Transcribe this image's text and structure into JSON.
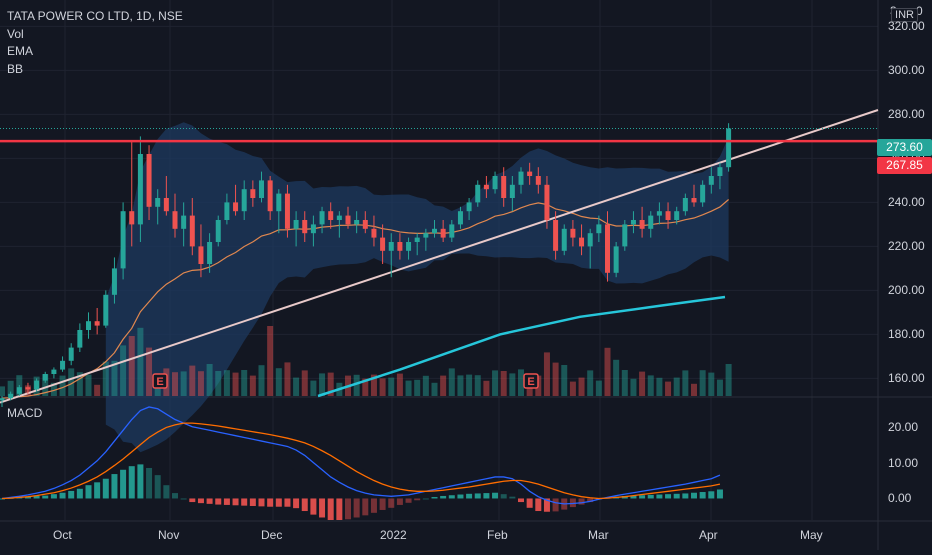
{
  "header": {
    "symbol_line": "TATA POWER CO LTD, 1D, NSE",
    "indicators": [
      "Vol",
      "EMA",
      "BB"
    ],
    "macd_label": "MACD",
    "currency": "INR"
  },
  "price_axis": {
    "ticks": [
      "320.00",
      "300.00",
      "280.00",
      "260.00",
      "240.00",
      "220.00",
      "200.00",
      "180.00",
      "160.00"
    ],
    "top_clipped": "3",
    "top_clipped_suffix": "0"
  },
  "macd_axis": {
    "ticks": [
      "20.00",
      "10.00",
      "0.00"
    ]
  },
  "time_axis": {
    "labels": [
      "Oct",
      "Nov",
      "Dec",
      "2022",
      "Feb",
      "Mar",
      "Apr",
      "May"
    ]
  },
  "price_tags": {
    "last": {
      "text": "273.60",
      "color": "#26a69a"
    },
    "resistance": {
      "text": "267.85",
      "color": "#f23645"
    }
  },
  "colors": {
    "up": "#26a69a",
    "down": "#ef5350",
    "bb_fill": "#1e3a5f",
    "ema_line": "#e0874f",
    "ma200": "#26c6da",
    "trendline": "#e8c9c9",
    "resistance": "#f23645",
    "macd": "#2962ff",
    "signal": "#ff6d00",
    "hist_up": "#26a69a",
    "hist_down": "#ef5350"
  },
  "chart_data": [
    {
      "type": "candlestick",
      "title": "TATA POWER CO LTD, 1D, NSE",
      "ylim": [
        152,
        332
      ],
      "x": [
        "Oct",
        "Nov",
        "Dec",
        "2022",
        "Feb",
        "Mar",
        "Apr",
        "May"
      ],
      "last_price": 273.6,
      "resistance_level": 267.85,
      "candles": [
        [
          150,
          152,
          147,
          151
        ],
        [
          151,
          154,
          150,
          153
        ],
        [
          153,
          157,
          152,
          156
        ],
        [
          156,
          158,
          153,
          155
        ],
        [
          155,
          160,
          154,
          159
        ],
        [
          159,
          163,
          158,
          162
        ],
        [
          162,
          165,
          160,
          164
        ],
        [
          164,
          170,
          163,
          168
        ],
        [
          168,
          176,
          166,
          174
        ],
        [
          174,
          185,
          172,
          182
        ],
        [
          182,
          190,
          178,
          186
        ],
        [
          186,
          192,
          180,
          184
        ],
        [
          184,
          200,
          183,
          198
        ],
        [
          198,
          215,
          194,
          210
        ],
        [
          210,
          240,
          205,
          236
        ],
        [
          236,
          268,
          220,
          230
        ],
        [
          230,
          270,
          222,
          262
        ],
        [
          262,
          266,
          232,
          238
        ],
        [
          238,
          246,
          230,
          242
        ],
        [
          242,
          252,
          234,
          236
        ],
        [
          236,
          244,
          224,
          228
        ],
        [
          228,
          240,
          220,
          234
        ],
        [
          234,
          242,
          216,
          220
        ],
        [
          220,
          230,
          206,
          212
        ],
        [
          212,
          226,
          208,
          222
        ],
        [
          222,
          234,
          220,
          232
        ],
        [
          232,
          244,
          230,
          240
        ],
        [
          240,
          248,
          234,
          236
        ],
        [
          236,
          250,
          232,
          246
        ],
        [
          246,
          250,
          238,
          242
        ],
        [
          242,
          254,
          240,
          250
        ],
        [
          250,
          252,
          232,
          236
        ],
        [
          236,
          246,
          226,
          244
        ],
        [
          244,
          248,
          224,
          228
        ],
        [
          228,
          236,
          220,
          232
        ],
        [
          232,
          236,
          222,
          226
        ],
        [
          226,
          234,
          220,
          230
        ],
        [
          230,
          238,
          226,
          236
        ],
        [
          236,
          240,
          228,
          232
        ],
        [
          232,
          236,
          224,
          234
        ],
        [
          234,
          238,
          228,
          230
        ],
        [
          230,
          236,
          226,
          232
        ],
        [
          232,
          236,
          226,
          228
        ],
        [
          228,
          234,
          220,
          224
        ],
        [
          224,
          230,
          212,
          218
        ],
        [
          218,
          226,
          206,
          222
        ],
        [
          222,
          226,
          214,
          218
        ],
        [
          218,
          224,
          214,
          222
        ],
        [
          222,
          226,
          216,
          224
        ],
        [
          224,
          228,
          218,
          226
        ],
        [
          226,
          232,
          224,
          228
        ],
        [
          228,
          232,
          222,
          224
        ],
        [
          224,
          232,
          222,
          230
        ],
        [
          230,
          238,
          228,
          236
        ],
        [
          236,
          242,
          232,
          240
        ],
        [
          240,
          250,
          238,
          248
        ],
        [
          248,
          252,
          242,
          246
        ],
        [
          246,
          254,
          244,
          252
        ],
        [
          252,
          256,
          238,
          242
        ],
        [
          242,
          252,
          236,
          248
        ],
        [
          248,
          256,
          244,
          254
        ],
        [
          254,
          258,
          248,
          252
        ],
        [
          252,
          256,
          244,
          248
        ],
        [
          248,
          252,
          228,
          232
        ],
        [
          232,
          236,
          214,
          218
        ],
        [
          218,
          230,
          216,
          228
        ],
        [
          228,
          232,
          220,
          224
        ],
        [
          224,
          230,
          216,
          220
        ],
        [
          220,
          228,
          210,
          226
        ],
        [
          226,
          234,
          222,
          230
        ],
        [
          230,
          236,
          204,
          208
        ],
        [
          208,
          222,
          206,
          220
        ],
        [
          220,
          232,
          218,
          230
        ],
        [
          230,
          236,
          226,
          232
        ],
        [
          232,
          238,
          224,
          228
        ],
        [
          228,
          236,
          224,
          234
        ],
        [
          234,
          240,
          230,
          236
        ],
        [
          236,
          240,
          228,
          232
        ],
        [
          232,
          238,
          230,
          236
        ],
        [
          236,
          244,
          234,
          242
        ],
        [
          242,
          248,
          238,
          240
        ],
        [
          240,
          250,
          238,
          248
        ],
        [
          248,
          256,
          244,
          252
        ],
        [
          252,
          258,
          246,
          256
        ],
        [
          256,
          276,
          254,
          273.6
        ]
      ]
    },
    {
      "type": "line",
      "title": "MACD",
      "ylim": [
        -6,
        28
      ],
      "series": [
        {
          "key": "macd",
          "values": [
            0,
            0.3,
            0.6,
            1,
            1.5,
            2,
            2.8,
            3.8,
            5,
            6.5,
            8.5,
            10.5,
            13,
            16,
            19,
            22,
            24.5,
            25.5,
            25,
            23.5,
            22,
            21,
            20,
            19.5,
            19,
            18.5,
            18,
            17.5,
            17,
            16.5,
            16,
            15.5,
            15,
            14.5,
            13.5,
            12,
            10,
            8,
            6,
            4.5,
            3.2,
            2.2,
            1.5,
            1,
            0.8,
            0.6,
            0.8,
            1,
            1.5,
            2,
            2.5,
            3,
            3.5,
            4,
            4.5,
            5,
            5.5,
            6,
            6,
            5.5,
            4,
            2,
            0.5,
            -0.5,
            -1.2,
            -1.5,
            -1.4,
            -1.2,
            -0.8,
            -0.2,
            0.3,
            0.8,
            1.2,
            1.6,
            2,
            2.4,
            2.8,
            3.2,
            3.6,
            4,
            4.5,
            5,
            5.5,
            6.5
          ]
        },
        {
          "key": "signal",
          "values": [
            0,
            0.1,
            0.3,
            0.5,
            0.8,
            1.2,
            1.6,
            2.2,
            2.9,
            3.8,
            4.8,
            6,
            7.5,
            9.2,
            11,
            13,
            15,
            17,
            18.5,
            19.8,
            20.5,
            21,
            21,
            20.8,
            20.5,
            20.2,
            19.8,
            19.4,
            19,
            18.6,
            18.2,
            17.8,
            17.3,
            16.8,
            16.2,
            15.5,
            14.5,
            13.3,
            12,
            10.5,
            9,
            7.5,
            6.2,
            5,
            4,
            3.2,
            2.6,
            2.2,
            2,
            2,
            2.1,
            2.3,
            2.6,
            2.9,
            3.2,
            3.6,
            4,
            4.4,
            4.8,
            5,
            5,
            4.6,
            4,
            3.2,
            2.4,
            1.6,
            1,
            0.5,
            0.2,
            0,
            0.1,
            0.3,
            0.5,
            0.8,
            1.1,
            1.4,
            1.7,
            2,
            2.3,
            2.6,
            2.9,
            3.2,
            3.5,
            4
          ]
        }
      ]
    }
  ]
}
